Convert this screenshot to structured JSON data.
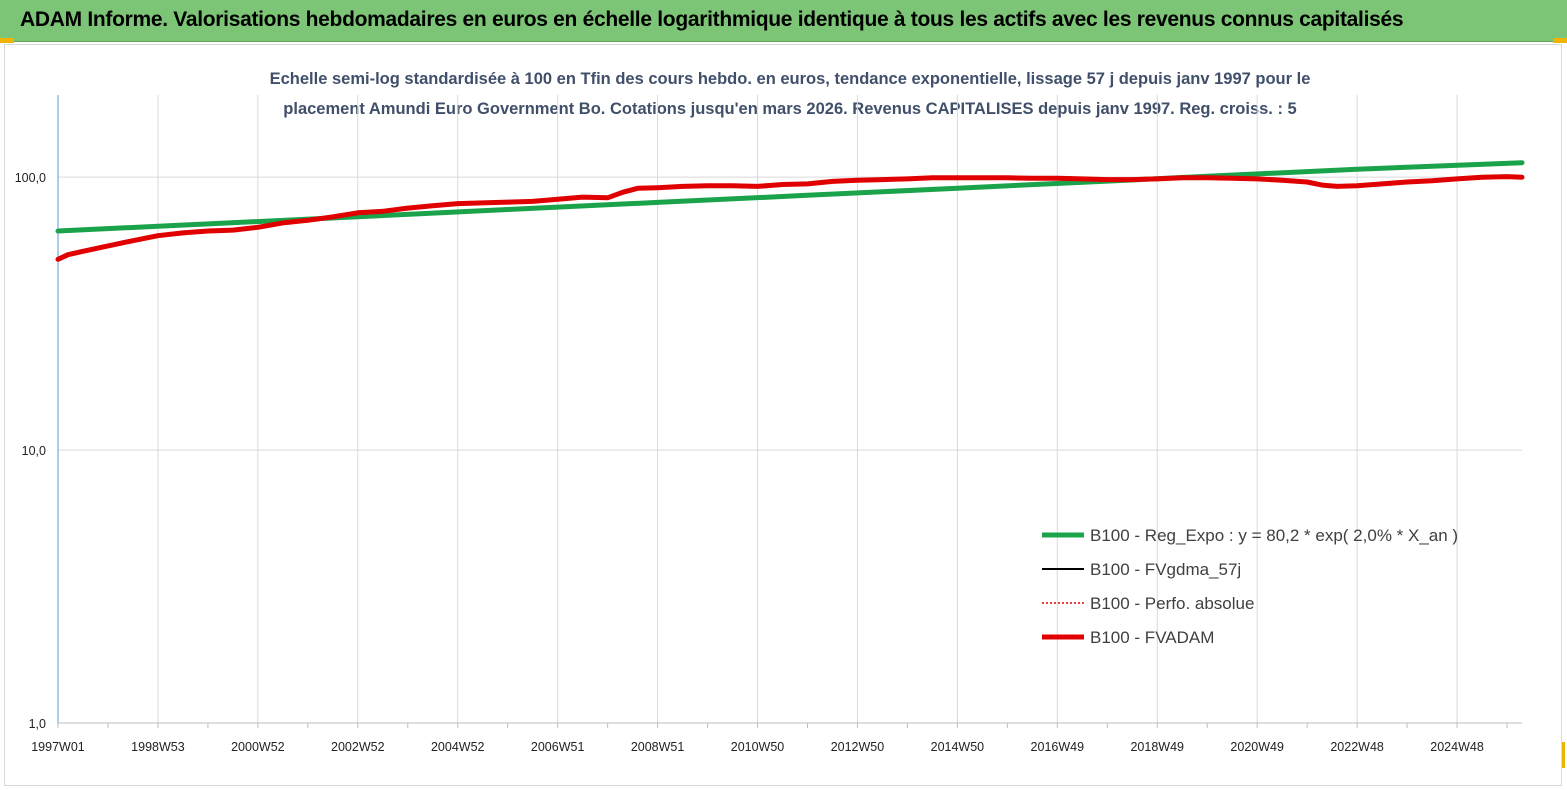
{
  "header": {
    "title": "ADAM Informe. Valorisations hebdomadaires en euros en échelle logarithmique identique à tous les actifs avec les revenus connus capitalisés"
  },
  "chart_data": {
    "type": "line",
    "title_lines": [
      "Echelle semi-log standardisée à 100 en Tfin des cours hebdo. en euros, tendance exponentielle, lissage 57 j depuis janv 1997 pour le",
      "placement Amundi Euro Government Bo. Cotations jusqu'en mars 2026. Revenus CAPITALISES depuis janv 1997. Reg. croiss. : 5"
    ],
    "y_scale": "log",
    "ylim": [
      1,
      200
    ],
    "y_ticks": [
      1,
      10,
      100
    ],
    "y_tick_labels": [
      "1,0",
      "10,0",
      "100,0"
    ],
    "xlim": [
      1997.0,
      2026.3
    ],
    "x_ticks": [
      1997.0,
      1999.0,
      2001.0,
      2003.0,
      2005.0,
      2007.0,
      2009.0,
      2011.0,
      2013.0,
      2015.0,
      2017.0,
      2019.0,
      2021.0,
      2023.0,
      2025.0
    ],
    "x_tick_labels": [
      "1997W01",
      "1998W53",
      "2000W52",
      "2002W52",
      "2004W52",
      "2006W51",
      "2008W51",
      "2010W50",
      "2012W50",
      "2014W50",
      "2016W49",
      "2018W49",
      "2020W49",
      "2022W48",
      "2024W48"
    ],
    "minor_x_ticks": [
      1998.0,
      2000.0,
      2002.0,
      2004.0,
      2006.0,
      2008.0,
      2010.0,
      2012.0,
      2014.0,
      2016.0,
      2018.0,
      2020.0,
      2022.0,
      2024.0,
      2026.0
    ],
    "grid": "vertical-and-horizontal",
    "legend_position": "lower-right",
    "series": [
      {
        "name": "B100 - Reg_Expo : y = 80,2 * exp( 2,0% *  X_an )",
        "color": "#1aa34a",
        "style": "solid-thick",
        "x": [
          1997.0,
          2000.0,
          2003.0,
          2006.0,
          2009.0,
          2012.0,
          2015.0,
          2018.0,
          2020.0,
          2023.0,
          2026.3
        ],
        "y": [
          63.5,
          67.4,
          71.6,
          76.1,
          80.8,
          85.8,
          91.1,
          96.7,
          100.7,
          106.9,
          113.0
        ]
      },
      {
        "name": "B100 - FVgdma_57j",
        "color": "#000000",
        "style": "solid-thin",
        "x": [],
        "y": []
      },
      {
        "name": "B100 - Perfo. absolue",
        "color": "#e00000",
        "style": "dotted",
        "x": [],
        "y": []
      },
      {
        "name": "B100 - FVADAM",
        "color": "#e00000",
        "style": "solid-thick",
        "x": [
          1997.0,
          1997.2,
          1997.5,
          1998.0,
          1998.5,
          1999.0,
          1999.5,
          2000.0,
          2000.5,
          2001.0,
          2001.5,
          2002.0,
          2002.5,
          2003.0,
          2003.5,
          2004.0,
          2004.5,
          2005.0,
          2005.5,
          2006.0,
          2006.5,
          2007.0,
          2007.5,
          2008.0,
          2008.3,
          2008.6,
          2009.0,
          2009.5,
          2010.0,
          2010.5,
          2011.0,
          2011.5,
          2012.0,
          2012.5,
          2013.0,
          2013.5,
          2014.0,
          2014.5,
          2015.0,
          2015.5,
          2016.0,
          2016.5,
          2017.0,
          2017.5,
          2018.0,
          2018.5,
          2019.0,
          2019.5,
          2020.0,
          2020.5,
          2021.0,
          2021.5,
          2022.0,
          2022.3,
          2022.6,
          2023.0,
          2023.5,
          2024.0,
          2024.5,
          2025.0,
          2025.5,
          2026.0,
          2026.3
        ],
        "y": [
          50.0,
          52.0,
          53.5,
          56.0,
          58.5,
          61.0,
          62.5,
          63.5,
          64.0,
          65.5,
          68.0,
          69.5,
          71.5,
          74.0,
          75.0,
          77.0,
          78.5,
          80.0,
          80.5,
          81.0,
          81.5,
          83.0,
          84.5,
          84.0,
          88.0,
          91.0,
          91.5,
          92.5,
          93.0,
          93.0,
          92.5,
          94.0,
          94.5,
          96.5,
          97.5,
          98.0,
          98.5,
          99.5,
          99.5,
          99.5,
          99.5,
          99.0,
          99.0,
          98.5,
          98.0,
          98.0,
          98.5,
          99.5,
          99.5,
          99.0,
          98.5,
          97.5,
          96.0,
          93.5,
          92.5,
          93.0,
          94.5,
          96.0,
          97.0,
          98.5,
          100.0,
          100.5,
          100.0
        ]
      }
    ]
  }
}
